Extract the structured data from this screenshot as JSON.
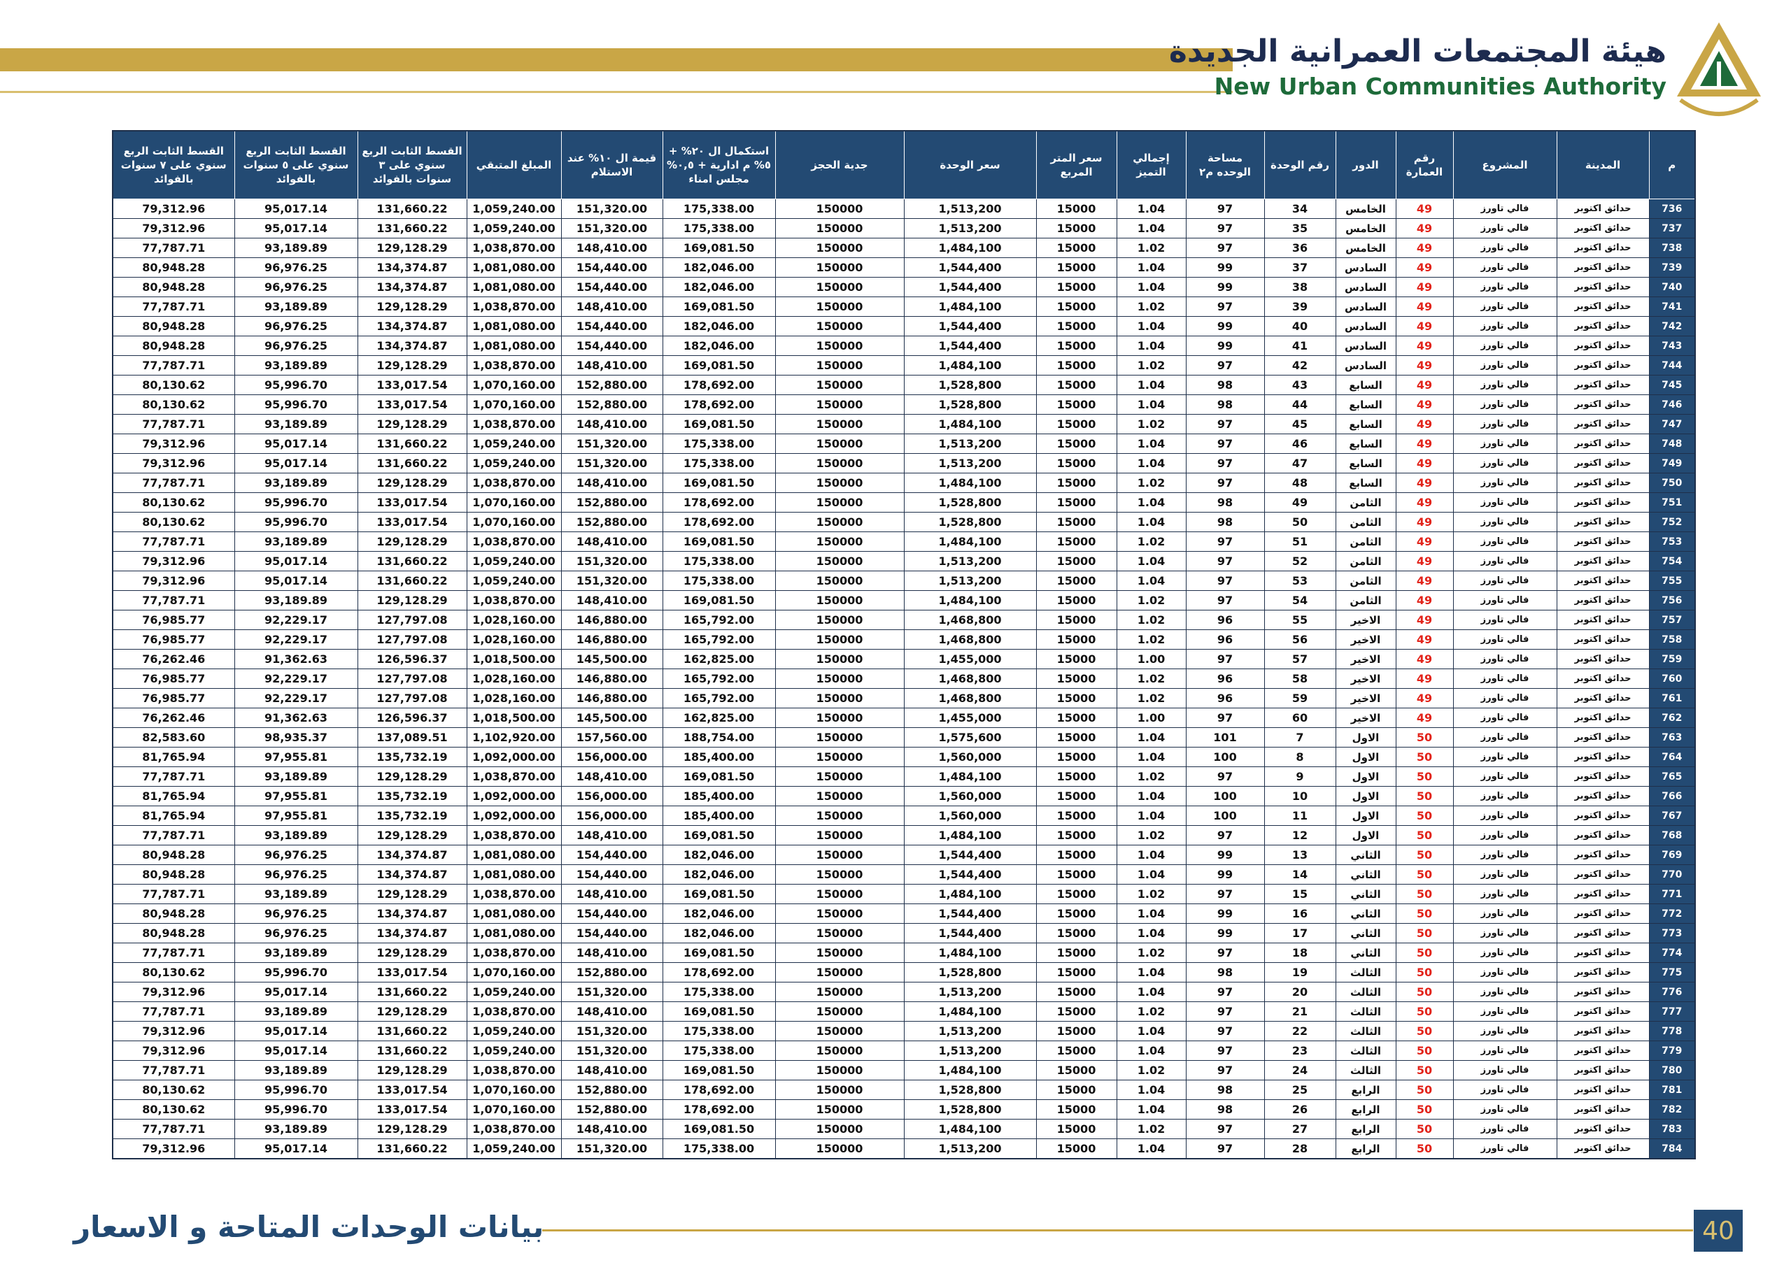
{
  "header": {
    "title_ar": "هيئة المجتمعات العمرانية الجديدة",
    "title_en": "New Urban Communities Authority"
  },
  "table": {
    "headers": [
      "م",
      "المدينة",
      "المشروع",
      "رقم العمارة",
      "الدور",
      "رقم الوحدة",
      "مساحة الوحده م٢",
      "إجمالي التميز",
      "سعر المتر المربع",
      "سعر الوحدة",
      "جدية الحجز",
      "استكمال ال ٢٠% + ٥% م ادارية + ٠,٥% مجلس امناء",
      "قيمة ال ١٠% عند الاستلام",
      "المبلغ المتبقي",
      "القسط الثابت الربع سنوي على ٣ سنوات بالفوائد",
      "القسط الثابت الربع سنوي على ٥ سنوات بالفوائد",
      "القسط الثابت الربع سنوي على ٧ سنوات بالفوائد"
    ],
    "rows": [
      [
        "736",
        "حدائق اكتوبر",
        "فالي تاورز",
        "49",
        "الخامس",
        "34",
        "97",
        "1.04",
        "15000",
        "1,513,200",
        "150000",
        "175,338.00",
        "151,320.00",
        "1,059,240.00",
        "131,660.22",
        "95,017.14",
        "79,312.96"
      ],
      [
        "737",
        "حدائق اكتوبر",
        "فالي تاورز",
        "49",
        "الخامس",
        "35",
        "97",
        "1.04",
        "15000",
        "1,513,200",
        "150000",
        "175,338.00",
        "151,320.00",
        "1,059,240.00",
        "131,660.22",
        "95,017.14",
        "79,312.96"
      ],
      [
        "738",
        "حدائق اكتوبر",
        "فالي تاورز",
        "49",
        "الخامس",
        "36",
        "97",
        "1.02",
        "15000",
        "1,484,100",
        "150000",
        "169,081.50",
        "148,410.00",
        "1,038,870.00",
        "129,128.29",
        "93,189.89",
        "77,787.71"
      ],
      [
        "739",
        "حدائق اكتوبر",
        "فالي تاورز",
        "49",
        "السادس",
        "37",
        "99",
        "1.04",
        "15000",
        "1,544,400",
        "150000",
        "182,046.00",
        "154,440.00",
        "1,081,080.00",
        "134,374.87",
        "96,976.25",
        "80,948.28"
      ],
      [
        "740",
        "حدائق اكتوبر",
        "فالي تاورز",
        "49",
        "السادس",
        "38",
        "99",
        "1.04",
        "15000",
        "1,544,400",
        "150000",
        "182,046.00",
        "154,440.00",
        "1,081,080.00",
        "134,374.87",
        "96,976.25",
        "80,948.28"
      ],
      [
        "741",
        "حدائق اكتوبر",
        "فالي تاورز",
        "49",
        "السادس",
        "39",
        "97",
        "1.02",
        "15000",
        "1,484,100",
        "150000",
        "169,081.50",
        "148,410.00",
        "1,038,870.00",
        "129,128.29",
        "93,189.89",
        "77,787.71"
      ],
      [
        "742",
        "حدائق اكتوبر",
        "فالي تاورز",
        "49",
        "السادس",
        "40",
        "99",
        "1.04",
        "15000",
        "1,544,400",
        "150000",
        "182,046.00",
        "154,440.00",
        "1,081,080.00",
        "134,374.87",
        "96,976.25",
        "80,948.28"
      ],
      [
        "743",
        "حدائق اكتوبر",
        "فالي تاورز",
        "49",
        "السادس",
        "41",
        "99",
        "1.04",
        "15000",
        "1,544,400",
        "150000",
        "182,046.00",
        "154,440.00",
        "1,081,080.00",
        "134,374.87",
        "96,976.25",
        "80,948.28"
      ],
      [
        "744",
        "حدائق اكتوبر",
        "فالي تاورز",
        "49",
        "السادس",
        "42",
        "97",
        "1.02",
        "15000",
        "1,484,100",
        "150000",
        "169,081.50",
        "148,410.00",
        "1,038,870.00",
        "129,128.29",
        "93,189.89",
        "77,787.71"
      ],
      [
        "745",
        "حدائق اكتوبر",
        "فالي تاورز",
        "49",
        "السابع",
        "43",
        "98",
        "1.04",
        "15000",
        "1,528,800",
        "150000",
        "178,692.00",
        "152,880.00",
        "1,070,160.00",
        "133,017.54",
        "95,996.70",
        "80,130.62"
      ],
      [
        "746",
        "حدائق اكتوبر",
        "فالي تاورز",
        "49",
        "السابع",
        "44",
        "98",
        "1.04",
        "15000",
        "1,528,800",
        "150000",
        "178,692.00",
        "152,880.00",
        "1,070,160.00",
        "133,017.54",
        "95,996.70",
        "80,130.62"
      ],
      [
        "747",
        "حدائق اكتوبر",
        "فالي تاورز",
        "49",
        "السابع",
        "45",
        "97",
        "1.02",
        "15000",
        "1,484,100",
        "150000",
        "169,081.50",
        "148,410.00",
        "1,038,870.00",
        "129,128.29",
        "93,189.89",
        "77,787.71"
      ],
      [
        "748",
        "حدائق اكتوبر",
        "فالي تاورز",
        "49",
        "السابع",
        "46",
        "97",
        "1.04",
        "15000",
        "1,513,200",
        "150000",
        "175,338.00",
        "151,320.00",
        "1,059,240.00",
        "131,660.22",
        "95,017.14",
        "79,312.96"
      ],
      [
        "749",
        "حدائق اكتوبر",
        "فالي تاورز",
        "49",
        "السابع",
        "47",
        "97",
        "1.04",
        "15000",
        "1,513,200",
        "150000",
        "175,338.00",
        "151,320.00",
        "1,059,240.00",
        "131,660.22",
        "95,017.14",
        "79,312.96"
      ],
      [
        "750",
        "حدائق اكتوبر",
        "فالي تاورز",
        "49",
        "السابع",
        "48",
        "97",
        "1.02",
        "15000",
        "1,484,100",
        "150000",
        "169,081.50",
        "148,410.00",
        "1,038,870.00",
        "129,128.29",
        "93,189.89",
        "77,787.71"
      ],
      [
        "751",
        "حدائق اكتوبر",
        "فالي تاورز",
        "49",
        "الثامن",
        "49",
        "98",
        "1.04",
        "15000",
        "1,528,800",
        "150000",
        "178,692.00",
        "152,880.00",
        "1,070,160.00",
        "133,017.54",
        "95,996.70",
        "80,130.62"
      ],
      [
        "752",
        "حدائق اكتوبر",
        "فالي تاورز",
        "49",
        "الثامن",
        "50",
        "98",
        "1.04",
        "15000",
        "1,528,800",
        "150000",
        "178,692.00",
        "152,880.00",
        "1,070,160.00",
        "133,017.54",
        "95,996.70",
        "80,130.62"
      ],
      [
        "753",
        "حدائق اكتوبر",
        "فالي تاورز",
        "49",
        "الثامن",
        "51",
        "97",
        "1.02",
        "15000",
        "1,484,100",
        "150000",
        "169,081.50",
        "148,410.00",
        "1,038,870.00",
        "129,128.29",
        "93,189.89",
        "77,787.71"
      ],
      [
        "754",
        "حدائق اكتوبر",
        "فالي تاورز",
        "49",
        "الثامن",
        "52",
        "97",
        "1.04",
        "15000",
        "1,513,200",
        "150000",
        "175,338.00",
        "151,320.00",
        "1,059,240.00",
        "131,660.22",
        "95,017.14",
        "79,312.96"
      ],
      [
        "755",
        "حدائق اكتوبر",
        "فالي تاورز",
        "49",
        "الثامن",
        "53",
        "97",
        "1.04",
        "15000",
        "1,513,200",
        "150000",
        "175,338.00",
        "151,320.00",
        "1,059,240.00",
        "131,660.22",
        "95,017.14",
        "79,312.96"
      ],
      [
        "756",
        "حدائق اكتوبر",
        "فالي تاورز",
        "49",
        "الثامن",
        "54",
        "97",
        "1.02",
        "15000",
        "1,484,100",
        "150000",
        "169,081.50",
        "148,410.00",
        "1,038,870.00",
        "129,128.29",
        "93,189.89",
        "77,787.71"
      ],
      [
        "757",
        "حدائق اكتوبر",
        "فالي تاورز",
        "49",
        "الاخير",
        "55",
        "96",
        "1.02",
        "15000",
        "1,468,800",
        "150000",
        "165,792.00",
        "146,880.00",
        "1,028,160.00",
        "127,797.08",
        "92,229.17",
        "76,985.77"
      ],
      [
        "758",
        "حدائق اكتوبر",
        "فالي تاورز",
        "49",
        "الاخير",
        "56",
        "96",
        "1.02",
        "15000",
        "1,468,800",
        "150000",
        "165,792.00",
        "146,880.00",
        "1,028,160.00",
        "127,797.08",
        "92,229.17",
        "76,985.77"
      ],
      [
        "759",
        "حدائق اكتوبر",
        "فالي تاورز",
        "49",
        "الاخير",
        "57",
        "97",
        "1.00",
        "15000",
        "1,455,000",
        "150000",
        "162,825.00",
        "145,500.00",
        "1,018,500.00",
        "126,596.37",
        "91,362.63",
        "76,262.46"
      ],
      [
        "760",
        "حدائق اكتوبر",
        "فالي تاورز",
        "49",
        "الاخير",
        "58",
        "96",
        "1.02",
        "15000",
        "1,468,800",
        "150000",
        "165,792.00",
        "146,880.00",
        "1,028,160.00",
        "127,797.08",
        "92,229.17",
        "76,985.77"
      ],
      [
        "761",
        "حدائق اكتوبر",
        "فالي تاورز",
        "49",
        "الاخير",
        "59",
        "96",
        "1.02",
        "15000",
        "1,468,800",
        "150000",
        "165,792.00",
        "146,880.00",
        "1,028,160.00",
        "127,797.08",
        "92,229.17",
        "76,985.77"
      ],
      [
        "762",
        "حدائق اكتوبر",
        "فالي تاورز",
        "49",
        "الاخير",
        "60",
        "97",
        "1.00",
        "15000",
        "1,455,000",
        "150000",
        "162,825.00",
        "145,500.00",
        "1,018,500.00",
        "126,596.37",
        "91,362.63",
        "76,262.46"
      ],
      [
        "763",
        "حدائق اكتوبر",
        "فالي تاورز",
        "50",
        "الاول",
        "7",
        "101",
        "1.04",
        "15000",
        "1,575,600",
        "150000",
        "188,754.00",
        "157,560.00",
        "1,102,920.00",
        "137,089.51",
        "98,935.37",
        "82,583.60"
      ],
      [
        "764",
        "حدائق اكتوبر",
        "فالي تاورز",
        "50",
        "الاول",
        "8",
        "100",
        "1.04",
        "15000",
        "1,560,000",
        "150000",
        "185,400.00",
        "156,000.00",
        "1,092,000.00",
        "135,732.19",
        "97,955.81",
        "81,765.94"
      ],
      [
        "765",
        "حدائق اكتوبر",
        "فالي تاورز",
        "50",
        "الاول",
        "9",
        "97",
        "1.02",
        "15000",
        "1,484,100",
        "150000",
        "169,081.50",
        "148,410.00",
        "1,038,870.00",
        "129,128.29",
        "93,189.89",
        "77,787.71"
      ],
      [
        "766",
        "حدائق اكتوبر",
        "فالي تاورز",
        "50",
        "الاول",
        "10",
        "100",
        "1.04",
        "15000",
        "1,560,000",
        "150000",
        "185,400.00",
        "156,000.00",
        "1,092,000.00",
        "135,732.19",
        "97,955.81",
        "81,765.94"
      ],
      [
        "767",
        "حدائق اكتوبر",
        "فالي تاورز",
        "50",
        "الاول",
        "11",
        "100",
        "1.04",
        "15000",
        "1,560,000",
        "150000",
        "185,400.00",
        "156,000.00",
        "1,092,000.00",
        "135,732.19",
        "97,955.81",
        "81,765.94"
      ],
      [
        "768",
        "حدائق اكتوبر",
        "فالي تاورز",
        "50",
        "الاول",
        "12",
        "97",
        "1.02",
        "15000",
        "1,484,100",
        "150000",
        "169,081.50",
        "148,410.00",
        "1,038,870.00",
        "129,128.29",
        "93,189.89",
        "77,787.71"
      ],
      [
        "769",
        "حدائق اكتوبر",
        "فالي تاورز",
        "50",
        "الثاني",
        "13",
        "99",
        "1.04",
        "15000",
        "1,544,400",
        "150000",
        "182,046.00",
        "154,440.00",
        "1,081,080.00",
        "134,374.87",
        "96,976.25",
        "80,948.28"
      ],
      [
        "770",
        "حدائق اكتوبر",
        "فالي تاورز",
        "50",
        "الثاني",
        "14",
        "99",
        "1.04",
        "15000",
        "1,544,400",
        "150000",
        "182,046.00",
        "154,440.00",
        "1,081,080.00",
        "134,374.87",
        "96,976.25",
        "80,948.28"
      ],
      [
        "771",
        "حدائق اكتوبر",
        "فالي تاورز",
        "50",
        "الثاني",
        "15",
        "97",
        "1.02",
        "15000",
        "1,484,100",
        "150000",
        "169,081.50",
        "148,410.00",
        "1,038,870.00",
        "129,128.29",
        "93,189.89",
        "77,787.71"
      ],
      [
        "772",
        "حدائق اكتوبر",
        "فالي تاورز",
        "50",
        "الثاني",
        "16",
        "99",
        "1.04",
        "15000",
        "1,544,400",
        "150000",
        "182,046.00",
        "154,440.00",
        "1,081,080.00",
        "134,374.87",
        "96,976.25",
        "80,948.28"
      ],
      [
        "773",
        "حدائق اكتوبر",
        "فالي تاورز",
        "50",
        "الثاني",
        "17",
        "99",
        "1.04",
        "15000",
        "1,544,400",
        "150000",
        "182,046.00",
        "154,440.00",
        "1,081,080.00",
        "134,374.87",
        "96,976.25",
        "80,948.28"
      ],
      [
        "774",
        "حدائق اكتوبر",
        "فالي تاورز",
        "50",
        "الثاني",
        "18",
        "97",
        "1.02",
        "15000",
        "1,484,100",
        "150000",
        "169,081.50",
        "148,410.00",
        "1,038,870.00",
        "129,128.29",
        "93,189.89",
        "77,787.71"
      ],
      [
        "775",
        "حدائق اكتوبر",
        "فالي تاورز",
        "50",
        "الثالث",
        "19",
        "98",
        "1.04",
        "15000",
        "1,528,800",
        "150000",
        "178,692.00",
        "152,880.00",
        "1,070,160.00",
        "133,017.54",
        "95,996.70",
        "80,130.62"
      ],
      [
        "776",
        "حدائق اكتوبر",
        "فالي تاورز",
        "50",
        "الثالث",
        "20",
        "97",
        "1.04",
        "15000",
        "1,513,200",
        "150000",
        "175,338.00",
        "151,320.00",
        "1,059,240.00",
        "131,660.22",
        "95,017.14",
        "79,312.96"
      ],
      [
        "777",
        "حدائق اكتوبر",
        "فالي تاورز",
        "50",
        "الثالث",
        "21",
        "97",
        "1.02",
        "15000",
        "1,484,100",
        "150000",
        "169,081.50",
        "148,410.00",
        "1,038,870.00",
        "129,128.29",
        "93,189.89",
        "77,787.71"
      ],
      [
        "778",
        "حدائق اكتوبر",
        "فالي تاورز",
        "50",
        "الثالث",
        "22",
        "97",
        "1.04",
        "15000",
        "1,513,200",
        "150000",
        "175,338.00",
        "151,320.00",
        "1,059,240.00",
        "131,660.22",
        "95,017.14",
        "79,312.96"
      ],
      [
        "779",
        "حدائق اكتوبر",
        "فالي تاورز",
        "50",
        "الثالث",
        "23",
        "97",
        "1.04",
        "15000",
        "1,513,200",
        "150000",
        "175,338.00",
        "151,320.00",
        "1,059,240.00",
        "131,660.22",
        "95,017.14",
        "79,312.96"
      ],
      [
        "780",
        "حدائق اكتوبر",
        "فالي تاورز",
        "50",
        "الثالث",
        "24",
        "97",
        "1.02",
        "15000",
        "1,484,100",
        "150000",
        "169,081.50",
        "148,410.00",
        "1,038,870.00",
        "129,128.29",
        "93,189.89",
        "77,787.71"
      ],
      [
        "781",
        "حدائق اكتوبر",
        "فالي تاورز",
        "50",
        "الرابع",
        "25",
        "98",
        "1.04",
        "15000",
        "1,528,800",
        "150000",
        "178,692.00",
        "152,880.00",
        "1,070,160.00",
        "133,017.54",
        "95,996.70",
        "80,130.62"
      ],
      [
        "782",
        "حدائق اكتوبر",
        "فالي تاورز",
        "50",
        "الرابع",
        "26",
        "98",
        "1.04",
        "15000",
        "1,528,800",
        "150000",
        "178,692.00",
        "152,880.00",
        "1,070,160.00",
        "133,017.54",
        "95,996.70",
        "80,130.62"
      ],
      [
        "783",
        "حدائق اكتوبر",
        "فالي تاورز",
        "50",
        "الرابع",
        "27",
        "97",
        "1.02",
        "15000",
        "1,484,100",
        "150000",
        "169,081.50",
        "148,410.00",
        "1,038,870.00",
        "129,128.29",
        "93,189.89",
        "77,787.71"
      ],
      [
        "784",
        "حدائق اكتوبر",
        "فالي تاورز",
        "50",
        "الرابع",
        "28",
        "97",
        "1.04",
        "15000",
        "1,513,200",
        "150000",
        "175,338.00",
        "151,320.00",
        "1,059,240.00",
        "131,660.22",
        "95,017.14",
        "79,312.96"
      ]
    ]
  },
  "footer": {
    "title": "بيانات الوحدات المتاحة و الاسعار",
    "page_number": "40"
  }
}
